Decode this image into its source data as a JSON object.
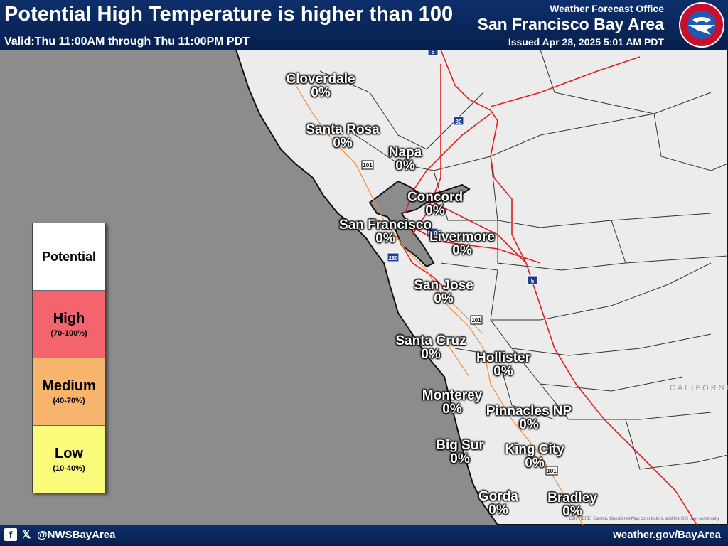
{
  "header": {
    "title": "Potential High Temperature is higher than 100",
    "valid": "Valid:Thu 11:00AM through Thu 11:00PM PDT",
    "office": "Weather Forecast Office",
    "area": "San Francisco Bay Area",
    "issued": "Issued Apr 28, 2025 5:01 AM PDT",
    "logo_icon": "nws-logo-icon"
  },
  "cities": [
    {
      "name": "Cloverdale",
      "value": "0%"
    },
    {
      "name": "Santa Rosa",
      "value": "0%"
    },
    {
      "name": "Napa",
      "value": "0%"
    },
    {
      "name": "Concord",
      "value": "0%"
    },
    {
      "name": "San Francisco",
      "value": "0%"
    },
    {
      "name": "Livermore",
      "value": "0%"
    },
    {
      "name": "San Jose",
      "value": "0%"
    },
    {
      "name": "Santa Cruz",
      "value": "0%"
    },
    {
      "name": "Hollister",
      "value": "0%"
    },
    {
      "name": "Monterey",
      "value": "0%"
    },
    {
      "name": "Pinnacles NP",
      "value": "0%"
    },
    {
      "name": "Big Sur",
      "value": "0%"
    },
    {
      "name": "King City",
      "value": "0%"
    },
    {
      "name": "Gorda",
      "value": "0%"
    },
    {
      "name": "Bradley",
      "value": "0%"
    }
  ],
  "map": {
    "region_label": "CALIFORNI",
    "shields": [
      "5",
      "80",
      "101",
      "580",
      "280",
      "5",
      "101",
      "101"
    ],
    "attribution": "Esri, HERE, Garmin, OpenStreetMap contributors, and the GIS user community"
  },
  "legend": {
    "title": "Potential",
    "items": [
      {
        "label": "High",
        "range": "(70-100%)",
        "color": "#f4646c"
      },
      {
        "label": "Medium",
        "range": "(40-70%)",
        "color": "#f7b46c"
      },
      {
        "label": "Low",
        "range": "(10-40%)",
        "color": "#fcfc7c"
      }
    ]
  },
  "footer": {
    "handle": "@NWSBayArea",
    "website": "weather.gov/BayArea",
    "icons": [
      "facebook-icon",
      "x-icon"
    ]
  }
}
